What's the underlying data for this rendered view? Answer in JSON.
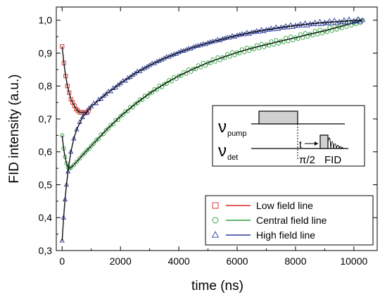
{
  "chart_data": {
    "type": "scatter",
    "xlabel": "time (ns)",
    "ylabel": "FID intensity (a.u.)",
    "xlim": [
      -200,
      10800
    ],
    "ylim": [
      0.3,
      1.04
    ],
    "xticks": [
      0,
      2000,
      4000,
      6000,
      8000,
      10000
    ],
    "xtick_labels": [
      "0",
      "2000",
      "4000",
      "6000",
      "8000",
      "10000"
    ],
    "yticks": [
      0.3,
      0.4,
      0.5,
      0.6,
      0.7,
      0.8,
      0.9,
      1.0
    ],
    "ytick_labels": [
      "0,3",
      "0,4",
      "0,5",
      "0,6",
      "0,7",
      "0,8",
      "0,9",
      "1,0"
    ],
    "legend_position": "bottom-right",
    "series": [
      {
        "name": "Low field line",
        "marker": "square",
        "color": "#d62a20",
        "x": [
          0,
          60,
          120,
          180,
          240,
          300,
          360,
          420,
          480,
          540,
          600,
          660,
          720,
          780,
          840,
          900
        ],
        "y": [
          0.92,
          0.87,
          0.83,
          0.8,
          0.78,
          0.76,
          0.75,
          0.74,
          0.73,
          0.725,
          0.72,
          0.72,
          0.72,
          0.72,
          0.72,
          0.725
        ]
      },
      {
        "name": "Central field line",
        "marker": "circle",
        "color": "#2ca23a",
        "x": [
          0,
          50,
          100,
          150,
          200,
          250,
          300,
          400,
          500,
          700,
          1000,
          1500,
          2000,
          2500,
          3000,
          3500,
          4000,
          4500,
          5000,
          5500,
          6000,
          6500,
          7000,
          7500,
          8000,
          8500,
          9000,
          9500,
          10000,
          10300
        ],
        "y": [
          0.65,
          0.61,
          0.585,
          0.565,
          0.553,
          0.55,
          0.552,
          0.56,
          0.57,
          0.59,
          0.618,
          0.665,
          0.708,
          0.745,
          0.778,
          0.806,
          0.831,
          0.852,
          0.871,
          0.887,
          0.902,
          0.915,
          0.926,
          0.937,
          0.947,
          0.958,
          0.968,
          0.98,
          0.992,
          1.0
        ]
      },
      {
        "name": "High field line",
        "marker": "triangle",
        "color": "#2a3a9c",
        "x": [
          0,
          50,
          100,
          150,
          200,
          300,
          400,
          500,
          700,
          1000,
          1500,
          2000,
          2500,
          3000,
          3500,
          4000,
          4500,
          5000,
          5500,
          6000,
          6500,
          7000,
          7500,
          8000,
          8500,
          9000,
          9500,
          10000,
          10300
        ],
        "y": [
          0.33,
          0.4,
          0.455,
          0.5,
          0.54,
          0.6,
          0.64,
          0.668,
          0.705,
          0.738,
          0.775,
          0.808,
          0.838,
          0.863,
          0.884,
          0.902,
          0.918,
          0.931,
          0.943,
          0.954,
          0.963,
          0.971,
          0.978,
          0.984,
          0.989,
          0.993,
          0.996,
          0.999,
          1.0
        ]
      }
    ]
  },
  "inset": {
    "pump_label": "ν",
    "pump_sub": "pump",
    "det_label": "ν",
    "det_sub": "det",
    "t_label": "t",
    "pulse_label": "π/2",
    "fid_label": "FID"
  }
}
